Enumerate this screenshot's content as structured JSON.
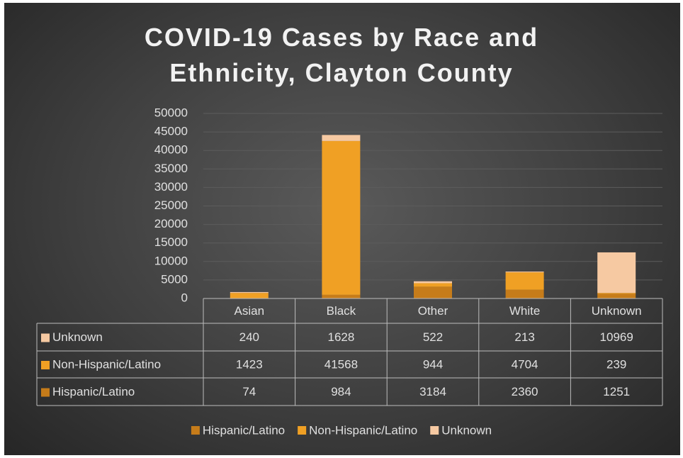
{
  "chart_data": {
    "type": "bar",
    "stacked": true,
    "title": "COVID-19 Cases by Race and Ethnicity, Clayton County",
    "categories": [
      "Asian",
      "Black",
      "Other",
      "White",
      "Unknown"
    ],
    "series": [
      {
        "name": "Hispanic/Latino",
        "color": "#c67c1a",
        "values": [
          74,
          984,
          3184,
          2360,
          1251
        ]
      },
      {
        "name": "Non-Hispanic/Latino",
        "color": "#f0a024",
        "values": [
          1423,
          41568,
          944,
          4704,
          239
        ]
      },
      {
        "name": "Unknown",
        "color": "#f6c9a2",
        "values": [
          240,
          1628,
          522,
          213,
          10969
        ]
      }
    ],
    "ylim": [
      0,
      50000
    ],
    "yticks": [
      0,
      5000,
      10000,
      15000,
      20000,
      25000,
      30000,
      35000,
      40000,
      45000,
      50000
    ],
    "grid": true,
    "data_table": true,
    "legend": "bottom"
  }
}
